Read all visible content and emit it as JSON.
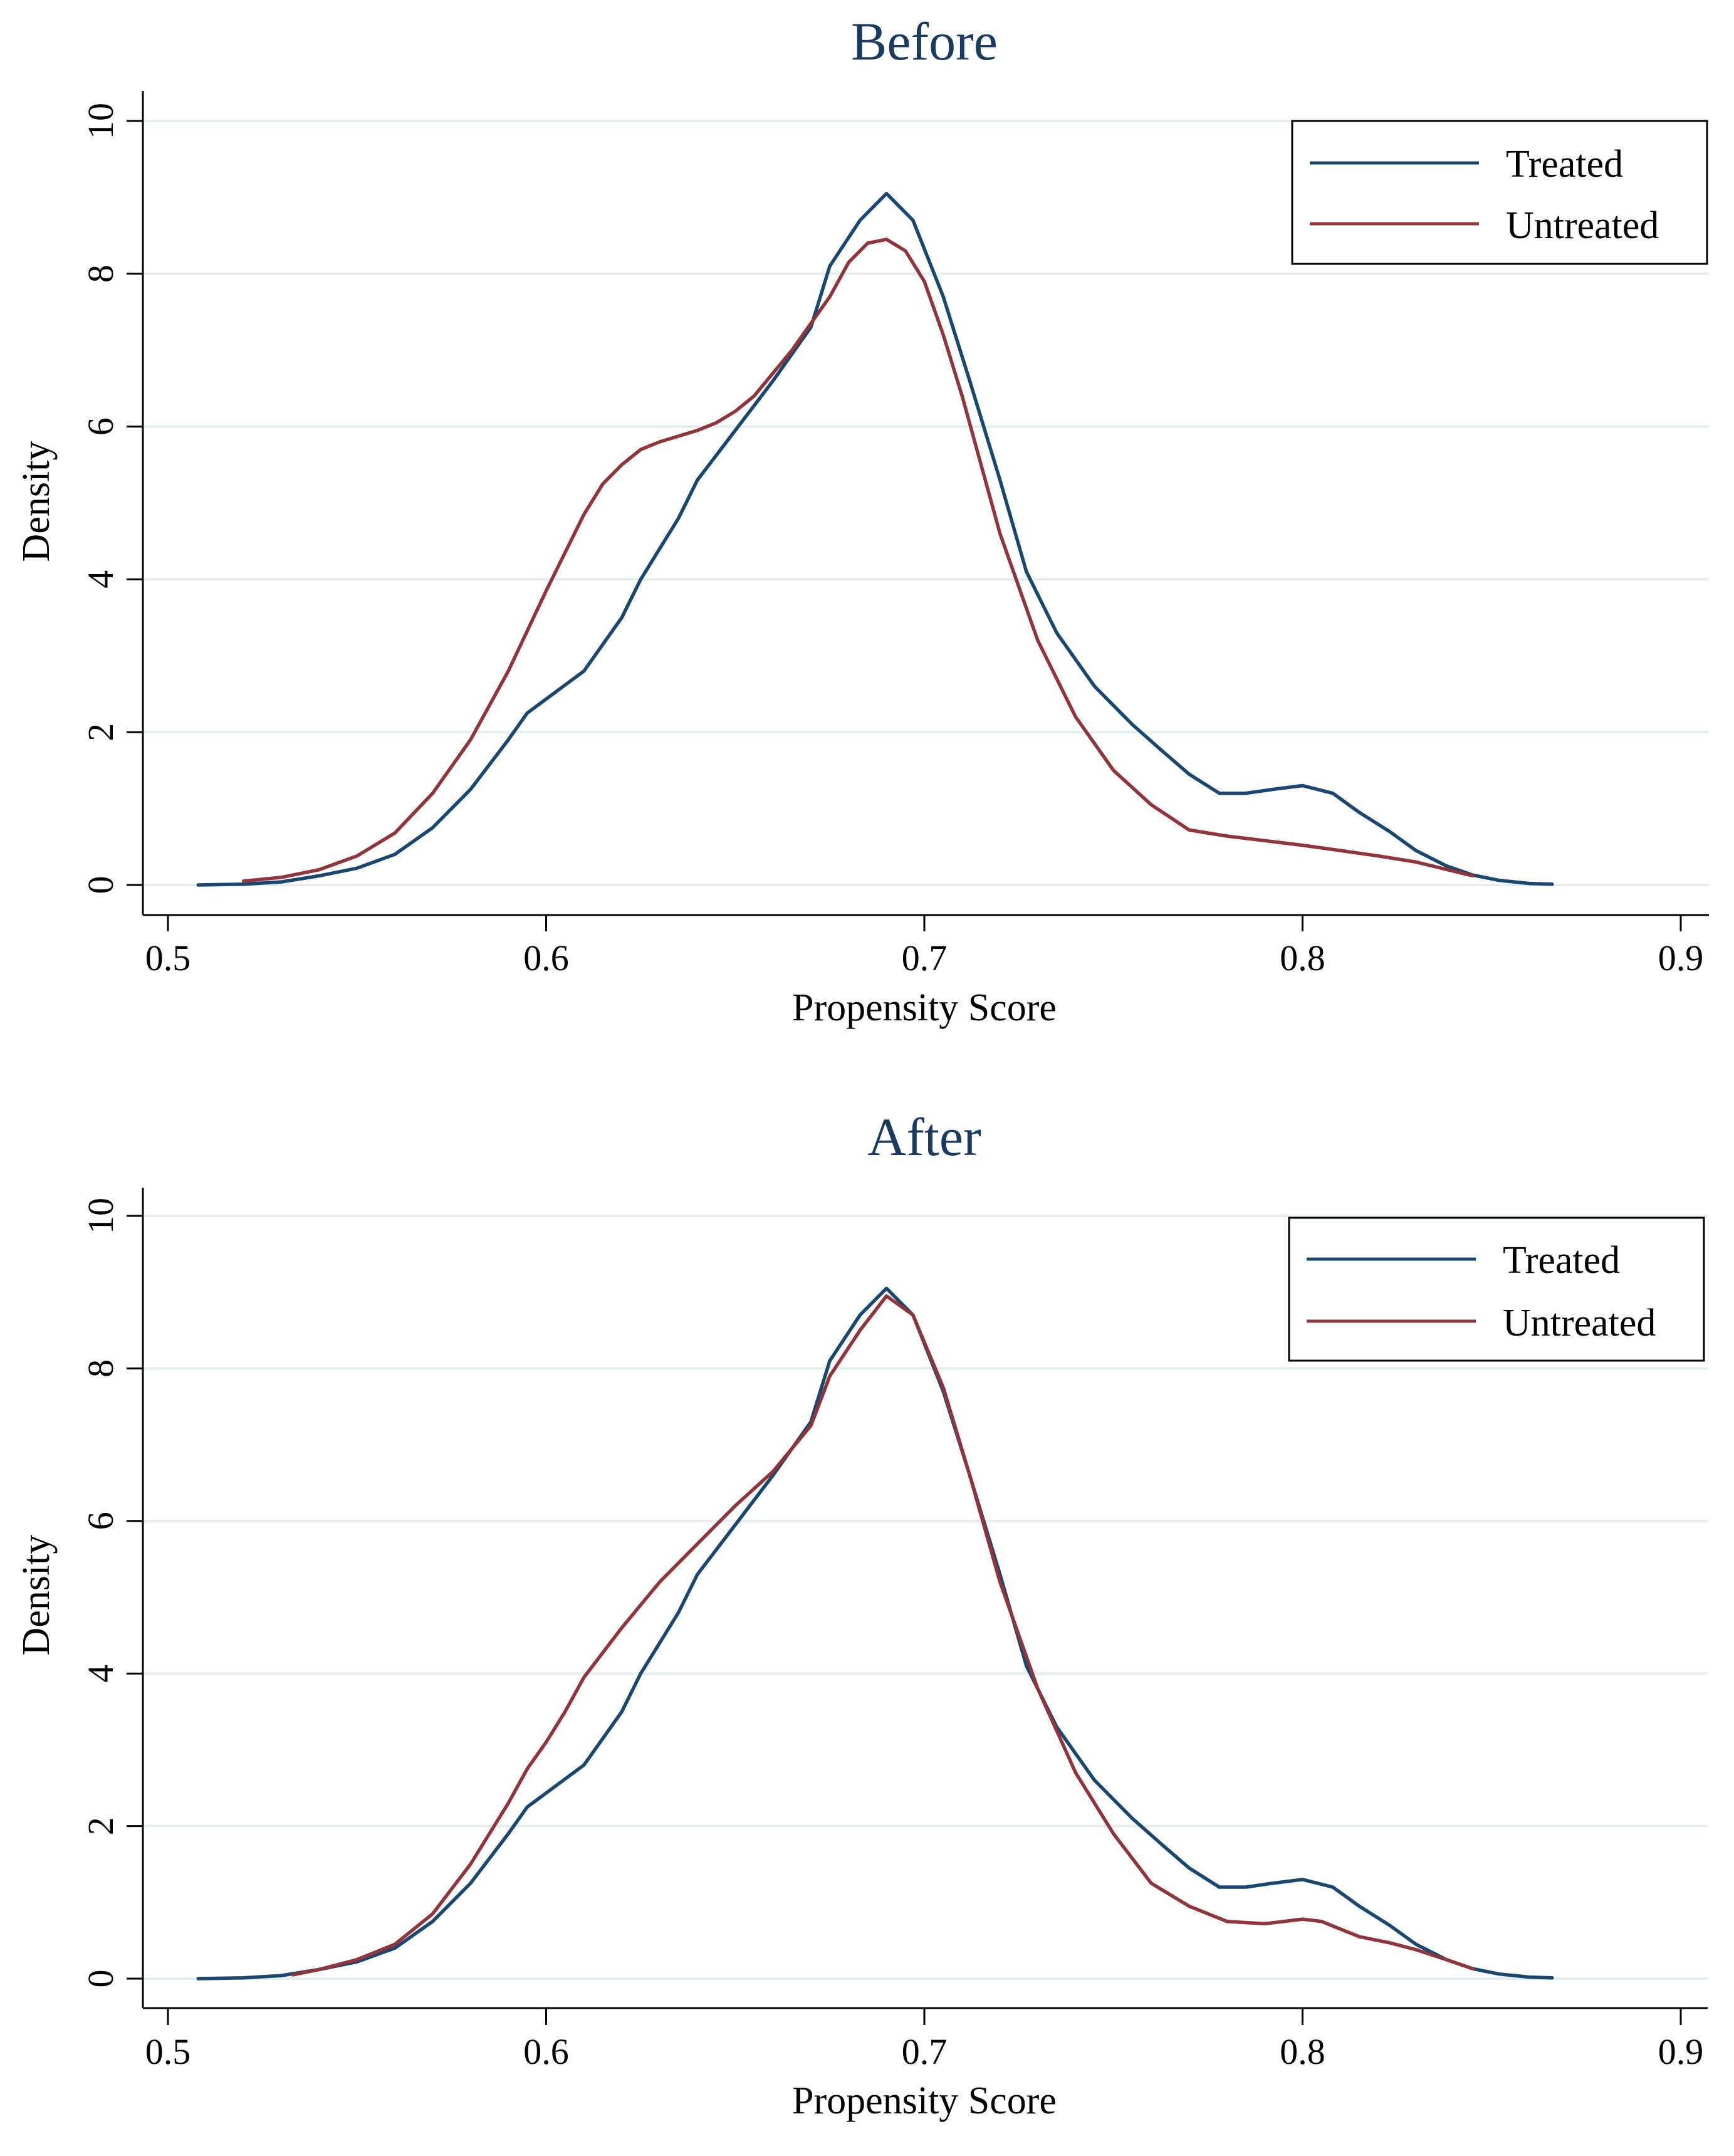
{
  "chart_data": [
    {
      "type": "line",
      "title": "Before",
      "xlabel": "Propensity Score",
      "ylabel": "Density",
      "xlim": [
        0.5,
        0.9
      ],
      "ylim": [
        0,
        10
      ],
      "xticks": [
        "0.5",
        "0.6",
        "0.7",
        "0.8",
        "0.9"
      ],
      "yticks": [
        "0",
        "2",
        "4",
        "6",
        "8",
        "10"
      ],
      "grid": true,
      "legend_position": "top-right",
      "series": [
        {
          "name": "Treated",
          "color": "#1a476f",
          "x": [
            0.508,
            0.52,
            0.53,
            0.54,
            0.55,
            0.56,
            0.57,
            0.58,
            0.59,
            0.595,
            0.61,
            0.62,
            0.625,
            0.635,
            0.64,
            0.65,
            0.66,
            0.67,
            0.675,
            0.683,
            0.69,
            0.697,
            0.705,
            0.712,
            0.72,
            0.727,
            0.735,
            0.745,
            0.755,
            0.763,
            0.77,
            0.778,
            0.785,
            0.792,
            0.8,
            0.808,
            0.815,
            0.823,
            0.83,
            0.838,
            0.845,
            0.852,
            0.86,
            0.866
          ],
          "y": [
            0.0,
            0.01,
            0.04,
            0.12,
            0.22,
            0.4,
            0.75,
            1.25,
            1.9,
            2.25,
            2.8,
            3.5,
            4.0,
            4.8,
            5.3,
            5.95,
            6.6,
            7.3,
            8.1,
            8.7,
            9.05,
            8.7,
            7.7,
            6.6,
            5.3,
            4.1,
            3.3,
            2.6,
            2.1,
            1.75,
            1.45,
            1.2,
            1.2,
            1.25,
            1.3,
            1.2,
            0.95,
            0.7,
            0.45,
            0.25,
            0.13,
            0.06,
            0.02,
            0.01
          ]
        },
        {
          "name": "Untreated",
          "color": "#90353b",
          "x": [
            0.52,
            0.53,
            0.54,
            0.55,
            0.56,
            0.57,
            0.58,
            0.59,
            0.6,
            0.605,
            0.61,
            0.615,
            0.62,
            0.625,
            0.63,
            0.64,
            0.645,
            0.65,
            0.655,
            0.66,
            0.665,
            0.67,
            0.675,
            0.68,
            0.685,
            0.69,
            0.695,
            0.7,
            0.705,
            0.71,
            0.715,
            0.72,
            0.73,
            0.74,
            0.75,
            0.76,
            0.77,
            0.78,
            0.79,
            0.8,
            0.81,
            0.82,
            0.83,
            0.845
          ],
          "y": [
            0.05,
            0.1,
            0.2,
            0.38,
            0.68,
            1.2,
            1.9,
            2.8,
            3.85,
            4.35,
            4.85,
            5.25,
            5.5,
            5.7,
            5.8,
            5.95,
            6.05,
            6.2,
            6.4,
            6.7,
            7.0,
            7.35,
            7.7,
            8.15,
            8.4,
            8.45,
            8.3,
            7.9,
            7.2,
            6.4,
            5.5,
            4.6,
            3.2,
            2.2,
            1.5,
            1.05,
            0.72,
            0.64,
            0.58,
            0.52,
            0.45,
            0.38,
            0.3,
            0.12
          ]
        }
      ]
    },
    {
      "type": "line",
      "title": "After",
      "xlabel": "Propensity Score",
      "ylabel": "Density",
      "xlim": [
        0.5,
        0.9
      ],
      "ylim": [
        0,
        10
      ],
      "xticks": [
        "0.5",
        "0.6",
        "0.7",
        "0.8",
        "0.9"
      ],
      "yticks": [
        "0",
        "2",
        "4",
        "6",
        "8",
        "10"
      ],
      "grid": true,
      "legend_position": "top-right",
      "series": [
        {
          "name": "Treated",
          "color": "#1a476f",
          "x": [
            0.508,
            0.52,
            0.53,
            0.54,
            0.55,
            0.56,
            0.57,
            0.58,
            0.59,
            0.595,
            0.61,
            0.62,
            0.625,
            0.635,
            0.64,
            0.65,
            0.66,
            0.67,
            0.675,
            0.683,
            0.69,
            0.697,
            0.705,
            0.712,
            0.72,
            0.727,
            0.735,
            0.745,
            0.755,
            0.763,
            0.77,
            0.778,
            0.785,
            0.792,
            0.8,
            0.808,
            0.815,
            0.823,
            0.83,
            0.838,
            0.845,
            0.852,
            0.86,
            0.866
          ],
          "y": [
            0.0,
            0.01,
            0.04,
            0.12,
            0.22,
            0.4,
            0.75,
            1.25,
            1.9,
            2.25,
            2.8,
            3.5,
            4.0,
            4.8,
            5.3,
            5.95,
            6.6,
            7.3,
            8.1,
            8.7,
            9.05,
            8.7,
            7.7,
            6.6,
            5.3,
            4.1,
            3.3,
            2.6,
            2.1,
            1.75,
            1.45,
            1.2,
            1.2,
            1.25,
            1.3,
            1.2,
            0.95,
            0.7,
            0.45,
            0.25,
            0.13,
            0.06,
            0.02,
            0.01
          ]
        },
        {
          "name": "Untreated",
          "color": "#90353b",
          "x": [
            0.533,
            0.54,
            0.55,
            0.56,
            0.57,
            0.58,
            0.59,
            0.595,
            0.6,
            0.605,
            0.61,
            0.62,
            0.63,
            0.64,
            0.65,
            0.66,
            0.67,
            0.675,
            0.683,
            0.69,
            0.697,
            0.705,
            0.712,
            0.72,
            0.73,
            0.74,
            0.75,
            0.76,
            0.77,
            0.78,
            0.79,
            0.8,
            0.805,
            0.81,
            0.815,
            0.823,
            0.83,
            0.838,
            0.845
          ],
          "y": [
            0.05,
            0.12,
            0.25,
            0.45,
            0.85,
            1.5,
            2.3,
            2.75,
            3.1,
            3.5,
            3.95,
            4.6,
            5.2,
            5.7,
            6.2,
            6.65,
            7.25,
            7.9,
            8.5,
            8.95,
            8.7,
            7.75,
            6.6,
            5.2,
            3.8,
            2.7,
            1.9,
            1.25,
            0.95,
            0.75,
            0.72,
            0.78,
            0.75,
            0.65,
            0.55,
            0.47,
            0.38,
            0.25,
            0.13
          ]
        }
      ]
    }
  ]
}
